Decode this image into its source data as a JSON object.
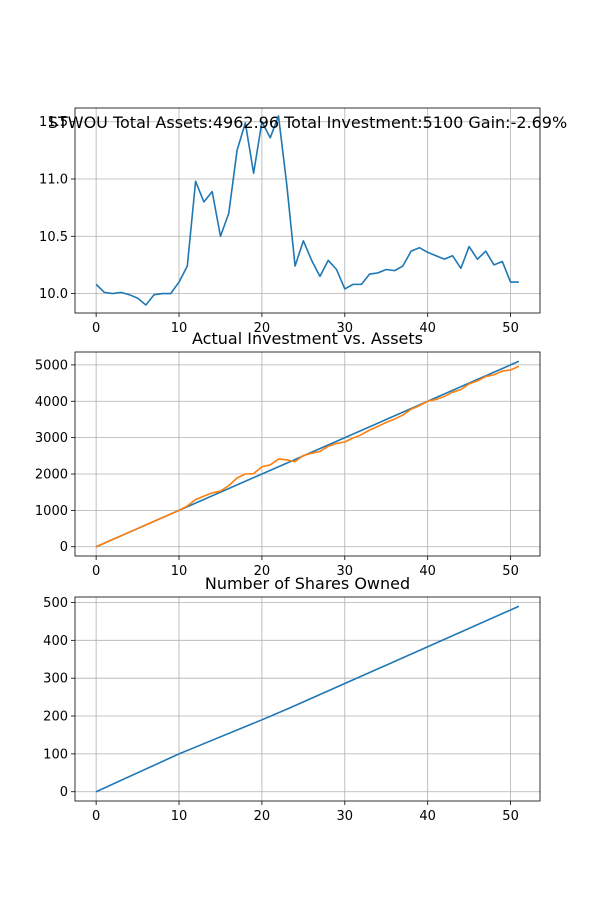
{
  "chart_data": [
    {
      "type": "line",
      "title": "STWOU Total Assets:4962.96  Total Investment:5100  Gain:-2.69%",
      "xlim": [
        -2.55,
        53.55
      ],
      "ylim": [
        9.83,
        11.62
      ],
      "xticks": [
        0,
        10,
        20,
        30,
        40,
        50
      ],
      "yticks": [
        10.0,
        10.5,
        11.0,
        11.5
      ],
      "ytick_labels": [
        "10.0",
        "10.5",
        "11.0",
        "11.5"
      ],
      "grid": true,
      "series": [
        {
          "color": "#1f77b4",
          "x": [
            0,
            1,
            2,
            3,
            4,
            5,
            6,
            7,
            8,
            9,
            10,
            11,
            12,
            13,
            14,
            15,
            16,
            17,
            18,
            19,
            20,
            21,
            22,
            23,
            24,
            25,
            26,
            27,
            28,
            29,
            30,
            31,
            32,
            33,
            34,
            35,
            36,
            37,
            38,
            39,
            40,
            41,
            42,
            43,
            44,
            45,
            46,
            47,
            48,
            49,
            50,
            51
          ],
          "y": [
            10.08,
            10.01,
            10.0,
            10.01,
            9.99,
            9.96,
            9.9,
            9.99,
            10.0,
            10.0,
            10.1,
            10.24,
            10.98,
            10.8,
            10.89,
            10.5,
            10.7,
            11.25,
            11.49,
            11.05,
            11.5,
            11.36,
            11.55,
            10.95,
            10.24,
            10.46,
            10.29,
            10.15,
            10.29,
            10.21,
            10.04,
            10.08,
            10.08,
            10.17,
            10.18,
            10.21,
            10.2,
            10.24,
            10.37,
            10.4,
            10.36,
            10.33,
            10.3,
            10.33,
            10.22,
            10.41,
            10.3,
            10.37,
            10.25,
            10.28,
            10.1,
            10.1
          ]
        }
      ]
    },
    {
      "type": "line",
      "title": "Actual Investment vs. Assets",
      "xlim": [
        -2.55,
        53.55
      ],
      "ylim": [
        -255,
        5355
      ],
      "xticks": [
        0,
        10,
        20,
        30,
        40,
        50
      ],
      "yticks": [
        0,
        1000,
        2000,
        3000,
        4000,
        5000
      ],
      "ytick_labels": [
        "0",
        "1000",
        "2000",
        "3000",
        "4000",
        "5000"
      ],
      "grid": true,
      "series": [
        {
          "color": "#1f77b4",
          "x": [
            0,
            51
          ],
          "y": [
            0,
            5100
          ]
        },
        {
          "color": "#ff7f0e",
          "x": [
            0,
            1,
            2,
            3,
            4,
            5,
            6,
            7,
            8,
            9,
            10,
            11,
            12,
            13,
            14,
            15,
            16,
            17,
            18,
            19,
            20,
            21,
            22,
            23,
            24,
            25,
            26,
            27,
            28,
            29,
            30,
            31,
            32,
            33,
            34,
            35,
            36,
            37,
            38,
            39,
            40,
            41,
            42,
            43,
            44,
            45,
            46,
            47,
            48,
            49,
            50,
            51
          ],
          "y": [
            0,
            100,
            200,
            300,
            400,
            500,
            600,
            700,
            800,
            900,
            1000,
            1120,
            1300,
            1390,
            1480,
            1530,
            1680,
            1890,
            2000,
            2010,
            2200,
            2250,
            2410,
            2390,
            2340,
            2510,
            2570,
            2620,
            2760,
            2840,
            2880,
            2990,
            3080,
            3210,
            3310,
            3420,
            3510,
            3620,
            3780,
            3880,
            4000,
            4050,
            4130,
            4250,
            4320,
            4480,
            4560,
            4680,
            4730,
            4830,
            4860,
            4963
          ]
        }
      ]
    },
    {
      "type": "line",
      "title": "Number of Shares Owned",
      "xlim": [
        -2.55,
        53.55
      ],
      "ylim": [
        -24.5,
        514.5
      ],
      "xticks": [
        0,
        10,
        20,
        30,
        40,
        50
      ],
      "yticks": [
        0,
        100,
        200,
        300,
        400,
        500
      ],
      "ytick_labels": [
        "0",
        "100",
        "200",
        "300",
        "400",
        "500"
      ],
      "grid": true,
      "series": [
        {
          "color": "#1f77b4",
          "x": [
            0,
            10,
            12,
            20,
            23,
            30,
            40,
            51
          ],
          "y": [
            0,
            100,
            118,
            190,
            218,
            286,
            383,
            490
          ]
        }
      ]
    }
  ]
}
